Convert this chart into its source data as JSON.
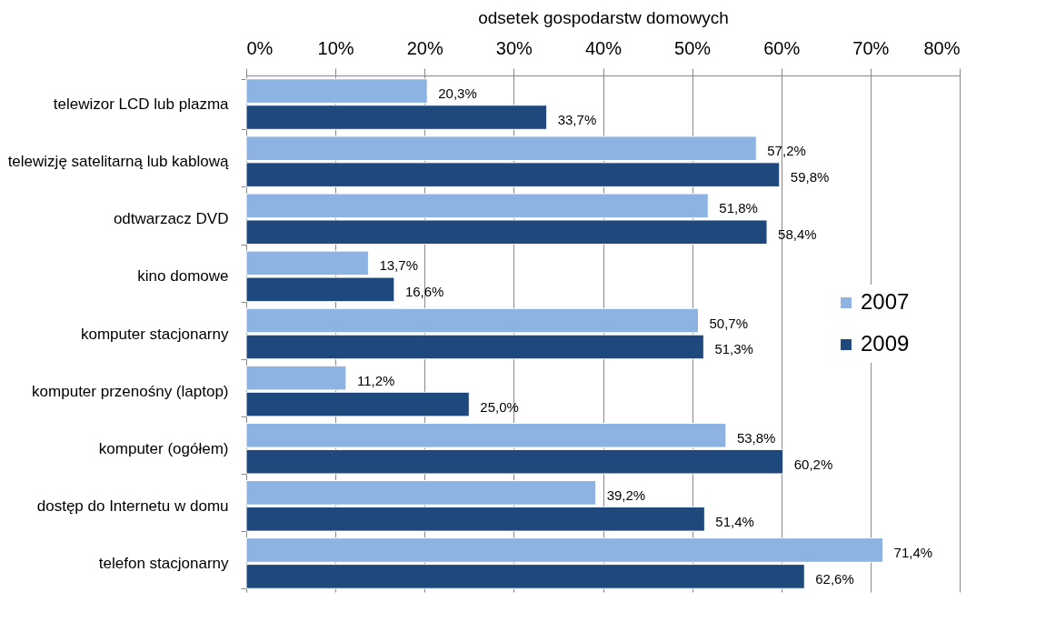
{
  "chart_data": {
    "type": "bar",
    "orientation": "horizontal",
    "xlabel": "odsetek gospodarstw domowych",
    "categories": [
      "telewizor LCD lub plazma",
      "telewizję satelitarną lub kablową",
      "odtwarzacz DVD",
      "kino domowe",
      "komputer stacjonarny",
      "komputer przenośny (laptop)",
      "komputer (ogółem)",
      "dostęp do Internetu w domu",
      "telefon stacjonarny"
    ],
    "series": [
      {
        "name": "2007",
        "color": "#8db3e2",
        "values": [
          20.3,
          57.2,
          51.8,
          13.7,
          50.7,
          11.2,
          53.8,
          39.2,
          71.4
        ],
        "value_labels": [
          "20,3%",
          "57,2%",
          "51,8%",
          "13,7%",
          "50,7%",
          "11,2%",
          "53,8%",
          "39,2%",
          "71,4%"
        ]
      },
      {
        "name": "2009",
        "color": "#1f497d",
        "values": [
          33.7,
          59.8,
          58.4,
          16.6,
          51.3,
          25.0,
          60.2,
          51.4,
          62.6
        ],
        "value_labels": [
          "33,7%",
          "59,8%",
          "58,4%",
          "16,6%",
          "51,3%",
          "25,0%",
          "60,2%",
          "51,4%",
          "62,6%"
        ]
      }
    ],
    "xlim": [
      0,
      80
    ],
    "xticks": [
      {
        "value": 0,
        "label": "0%"
      },
      {
        "value": 10,
        "label": "10%"
      },
      {
        "value": 20,
        "label": "20%"
      },
      {
        "value": 30,
        "label": "30%"
      },
      {
        "value": 40,
        "label": "40%"
      },
      {
        "value": 50,
        "label": "50%"
      },
      {
        "value": 60,
        "label": "60%"
      },
      {
        "value": 70,
        "label": "70%"
      },
      {
        "value": 80,
        "label": "80%"
      }
    ],
    "grid": "x",
    "legend": "right"
  }
}
